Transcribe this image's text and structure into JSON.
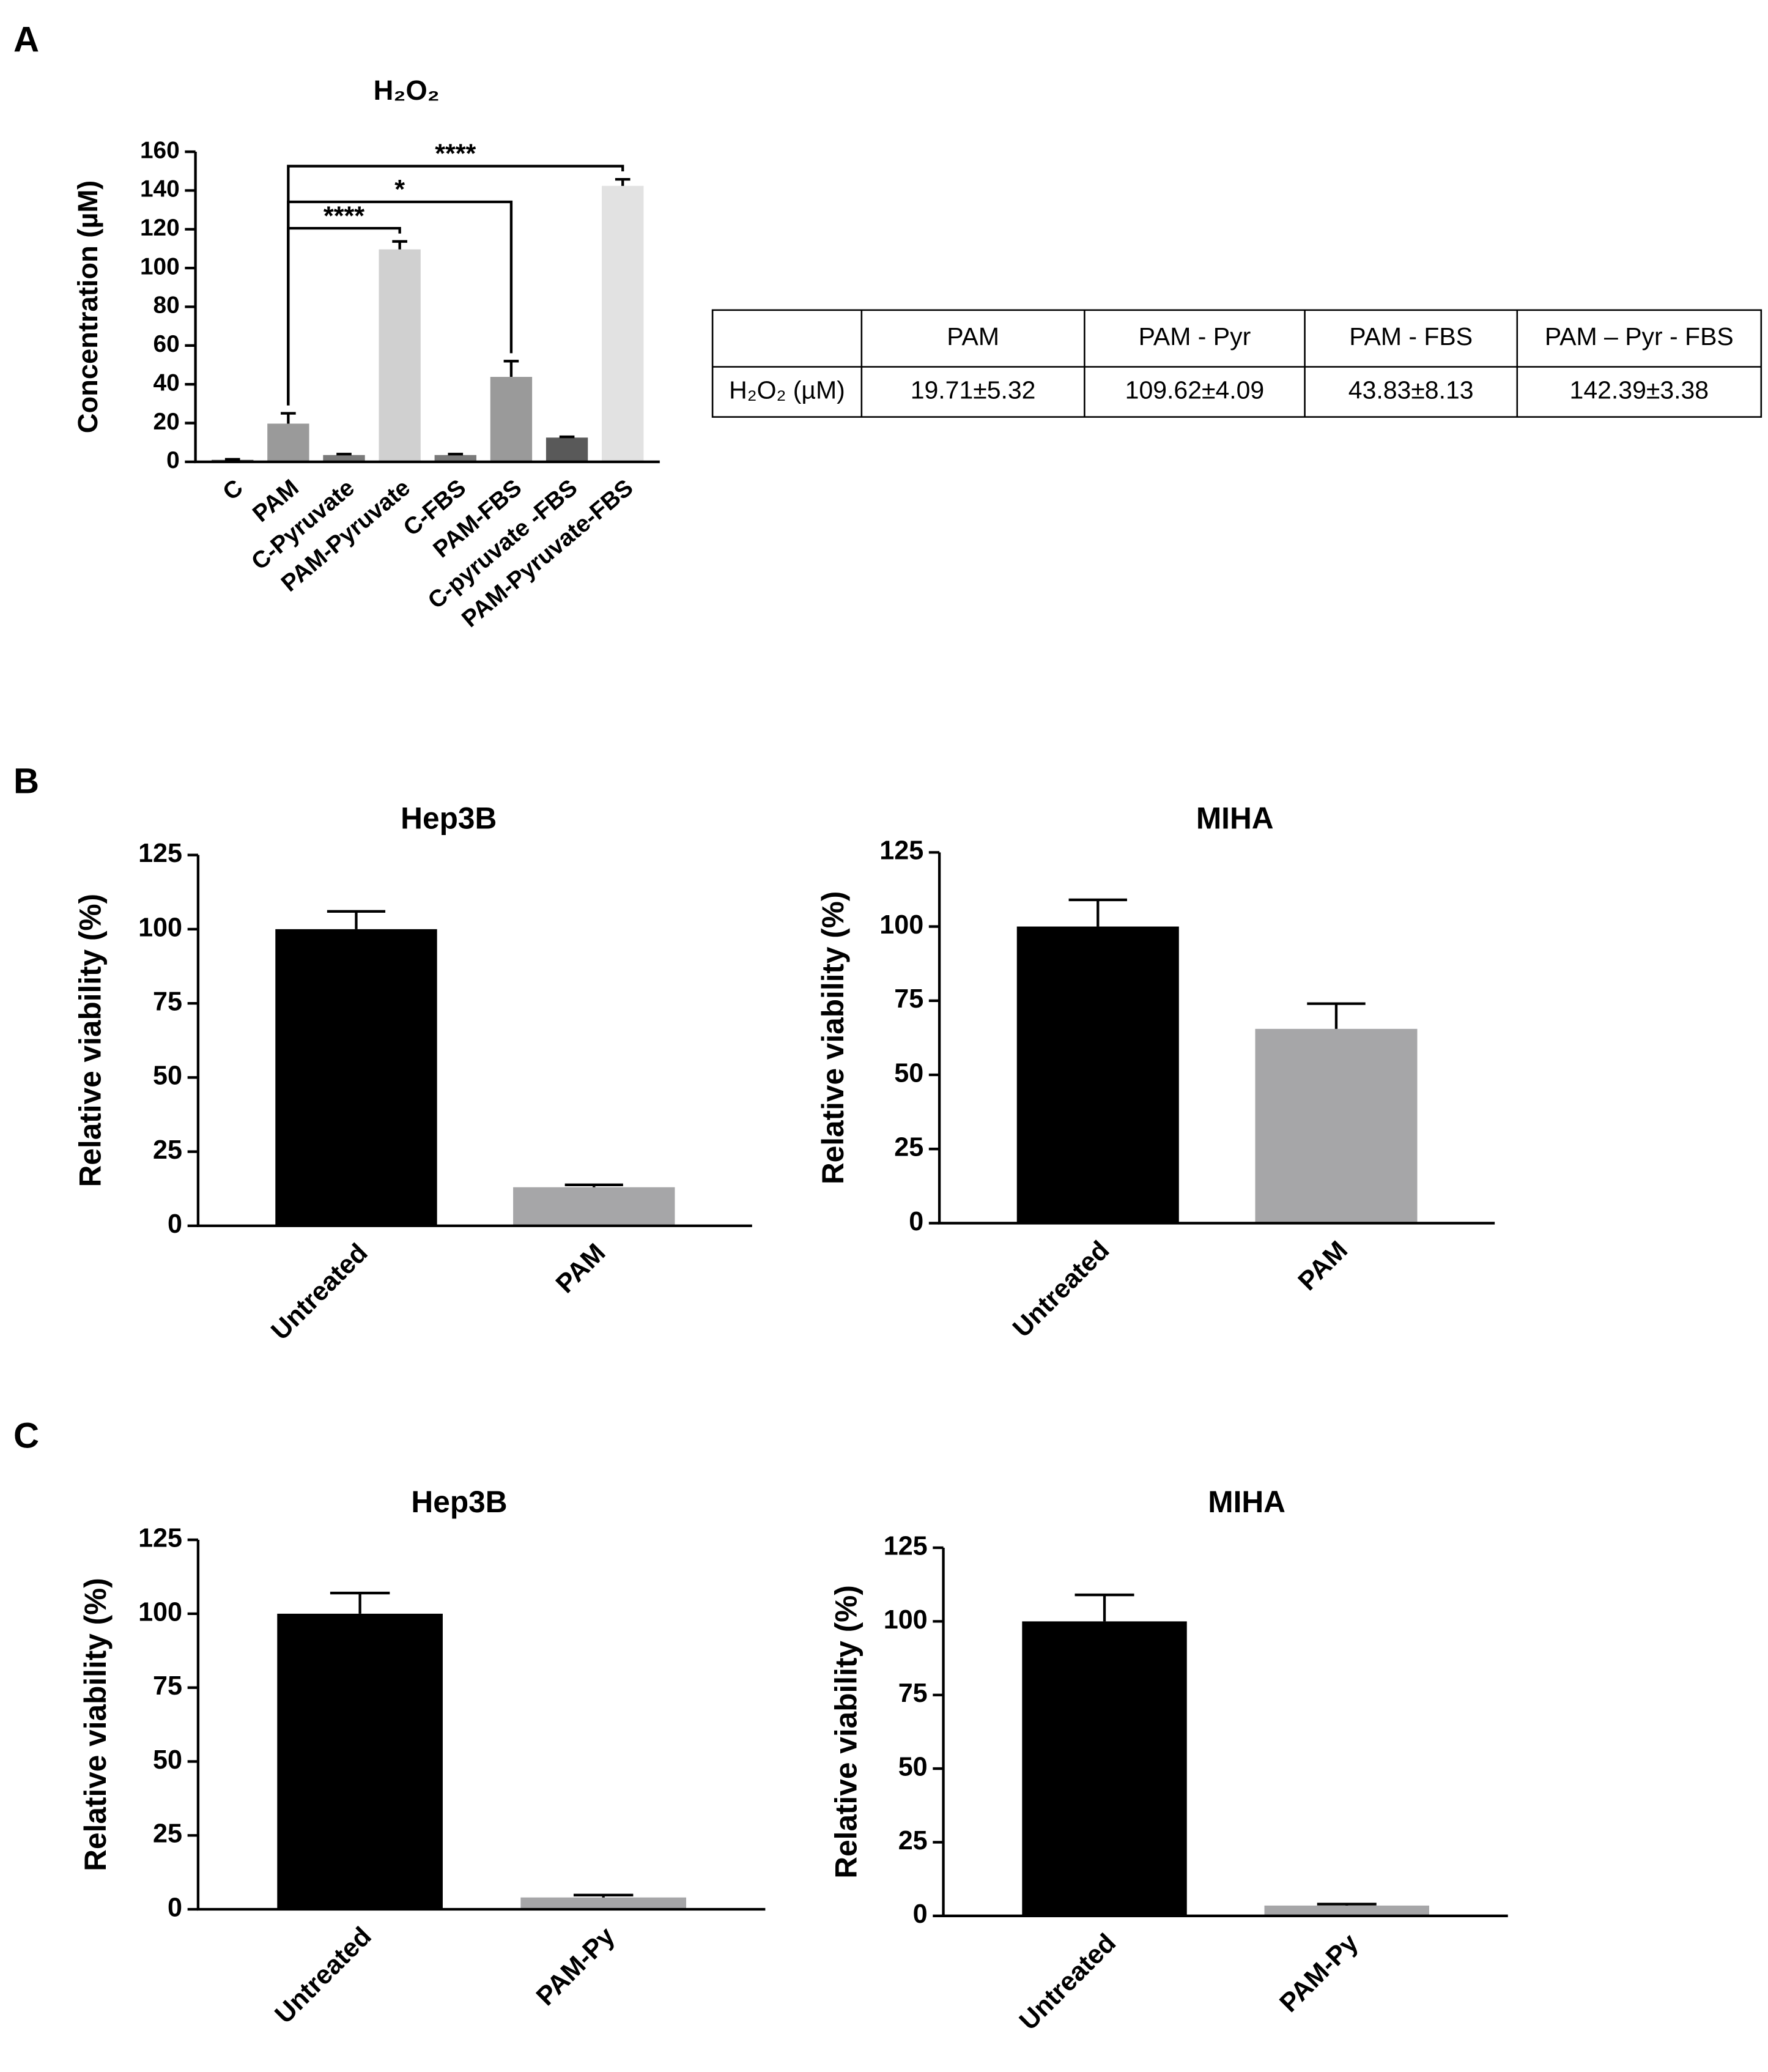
{
  "panel_labels": [
    "A",
    "B",
    "C"
  ],
  "chart_data": [
    {
      "type": "bar",
      "title": "H₂O₂",
      "y_label": "Concentration (µM)",
      "categories": [
        "C",
        "PAM",
        "C-Pyruvate",
        "PAM-Pyruvate",
        "C-FBS",
        "PAM-FBS",
        "C-pyruvate -FBS",
        "PAM-Pyruvate-FBS"
      ],
      "values": [
        1,
        19.71,
        3.5,
        109.62,
        3.5,
        43.83,
        12.5,
        142.39
      ],
      "errors": [
        0.3,
        5.32,
        0.5,
        4.09,
        0.5,
        8.13,
        0.4,
        3.38
      ],
      "colors": [
        "#505050",
        "#9a9a9a",
        "#7a7a7a",
        "#d0d0d0",
        "#7a7a7a",
        "#9a9a9a",
        "#595959",
        "#e2e2e2"
      ],
      "ylim": [
        0,
        160
      ],
      "yticks": [
        0,
        20,
        40,
        60,
        80,
        100,
        120,
        140,
        160
      ],
      "annotations": [
        {
          "from": 1,
          "to": 3,
          "label": "****"
        },
        {
          "from": 1,
          "to": 5,
          "label": "*"
        },
        {
          "from": 1,
          "to": 7,
          "label": "****"
        }
      ]
    },
    {
      "type": "bar",
      "title": "Hep3B",
      "y_label": "Relative viability (%)",
      "categories": [
        "Untreated",
        "PAM"
      ],
      "values": [
        100,
        13
      ],
      "errors": [
        6,
        0.8
      ],
      "colors": [
        "#000000",
        "#a6a6a8"
      ],
      "ylim": [
        0,
        125
      ],
      "yticks": [
        0,
        25,
        50,
        75,
        100,
        125
      ]
    },
    {
      "type": "bar",
      "title": "MIHA",
      "y_label": "Relative viability (%)",
      "categories": [
        "Untreated",
        "PAM"
      ],
      "values": [
        100,
        65.5
      ],
      "errors": [
        9,
        8.5
      ],
      "colors": [
        "#000000",
        "#a6a6a8"
      ],
      "ylim": [
        0,
        125
      ],
      "yticks": [
        0,
        25,
        50,
        75,
        100,
        125
      ]
    },
    {
      "type": "bar",
      "title": "Hep3B",
      "y_label": "Relative viability (%)",
      "categories": [
        "Untreated",
        "PAM-Py"
      ],
      "values": [
        100,
        4
      ],
      "errors": [
        7,
        0.8
      ],
      "colors": [
        "#000000",
        "#a6a6a8"
      ],
      "ylim": [
        0,
        125
      ],
      "yticks": [
        0,
        25,
        50,
        75,
        100,
        125
      ]
    },
    {
      "type": "bar",
      "title": "MIHA",
      "y_label": "Relative viability (%)",
      "categories": [
        "Untreated",
        "PAM-Py"
      ],
      "values": [
        100,
        3.5
      ],
      "errors": [
        9,
        0.5
      ],
      "colors": [
        "#000000",
        "#a6a6a8"
      ],
      "ylim": [
        0,
        125
      ],
      "yticks": [
        0,
        25,
        50,
        75,
        100,
        125
      ]
    }
  ],
  "table": {
    "header": [
      "PAM",
      "PAM - Pyr",
      "PAM - FBS",
      "PAM – Pyr - FBS"
    ],
    "rows": [
      [
        "H₂O₂ (µM)",
        "19.71±5.32",
        "109.62±4.09",
        "43.83±8.13",
        "142.39±3.38"
      ]
    ]
  }
}
